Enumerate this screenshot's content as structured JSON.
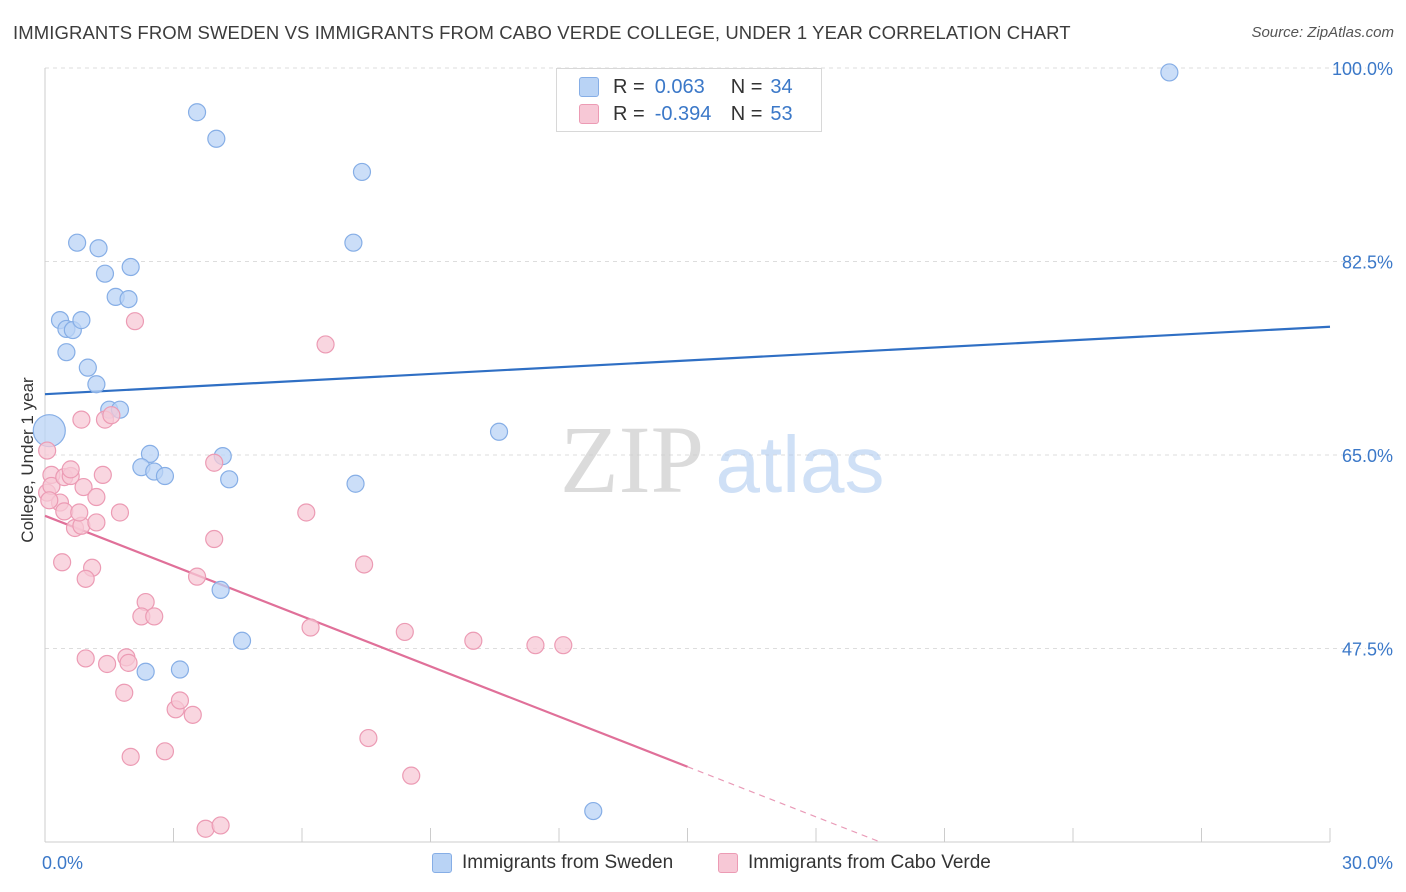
{
  "title": "IMMIGRANTS FROM SWEDEN VS IMMIGRANTS FROM CABO VERDE COLLEGE, UNDER 1 YEAR CORRELATION CHART",
  "source": "Source: ZipAtlas.com",
  "watermark": {
    "zip": "ZIP",
    "atlas": "atlas"
  },
  "legend": {
    "r_label": "R =",
    "n_label": "N =",
    "sweden": {
      "r": "0.063",
      "n": "34"
    },
    "caboverde": {
      "r": "-0.394",
      "n": "53"
    }
  },
  "colors": {
    "sweden_fill": "#b9d3f5",
    "sweden_stroke": "#86aee6",
    "sweden_line": "#2f6fc4",
    "caboverde_fill": "#f7c8d6",
    "caboverde_stroke": "#ec9bb4",
    "caboverde_line": "#e07099",
    "grid": "#dddddd",
    "axis_label": "#3b78c8"
  },
  "chart_data": {
    "type": "scatter",
    "xlabel": "",
    "ylabel": "College, Under 1 year",
    "xlim": [
      0,
      30
    ],
    "ylim": [
      30,
      100
    ],
    "x_tick_labels": [
      "0.0%",
      "30.0%"
    ],
    "y_ticks": [
      100,
      82.5,
      65,
      47.5
    ],
    "y_tick_labels": [
      "100.0%",
      "82.5%",
      "65.0%",
      "47.5%"
    ],
    "grid": true,
    "legend_position": "top-center",
    "series": [
      {
        "name": "Immigrants from Sweden",
        "trend": {
          "x": [
            0,
            30
          ],
          "y": [
            70.5,
            76.6
          ],
          "solid_until": 30
        },
        "points": [
          {
            "x": 0.1,
            "y": 67.2,
            "big": true
          },
          {
            "x": 0.35,
            "y": 77.2
          },
          {
            "x": 0.5,
            "y": 76.4
          },
          {
            "x": 0.65,
            "y": 76.3
          },
          {
            "x": 0.85,
            "y": 77.2
          },
          {
            "x": 0.5,
            "y": 74.3
          },
          {
            "x": 1.0,
            "y": 72.9
          },
          {
            "x": 1.2,
            "y": 71.4
          },
          {
            "x": 0.75,
            "y": 84.2
          },
          {
            "x": 1.25,
            "y": 83.7
          },
          {
            "x": 1.4,
            "y": 81.4
          },
          {
            "x": 1.65,
            "y": 79.3
          },
          {
            "x": 1.95,
            "y": 79.1
          },
          {
            "x": 2.0,
            "y": 82.0
          },
          {
            "x": 1.5,
            "y": 69.1
          },
          {
            "x": 1.75,
            "y": 69.1
          },
          {
            "x": 2.45,
            "y": 65.1
          },
          {
            "x": 2.25,
            "y": 63.9
          },
          {
            "x": 2.55,
            "y": 63.5
          },
          {
            "x": 2.8,
            "y": 63.1
          },
          {
            "x": 3.55,
            "y": 96.0
          },
          {
            "x": 4.0,
            "y": 93.6
          },
          {
            "x": 4.15,
            "y": 64.9
          },
          {
            "x": 4.3,
            "y": 62.8
          },
          {
            "x": 4.1,
            "y": 52.8
          },
          {
            "x": 4.6,
            "y": 48.2
          },
          {
            "x": 2.35,
            "y": 45.4
          },
          {
            "x": 3.15,
            "y": 45.6
          },
          {
            "x": 7.2,
            "y": 84.2
          },
          {
            "x": 7.4,
            "y": 90.6
          },
          {
            "x": 7.25,
            "y": 62.4
          },
          {
            "x": 10.6,
            "y": 67.1
          },
          {
            "x": 12.8,
            "y": 32.8
          },
          {
            "x": 26.25,
            "y": 99.6
          }
        ]
      },
      {
        "name": "Immigrants from Cabo Verde",
        "trend": {
          "x": [
            0,
            19.5
          ],
          "y": [
            59.5,
            30.0
          ],
          "solid_until": 15.0
        },
        "points": [
          {
            "x": 0.05,
            "y": 65.4
          },
          {
            "x": 0.05,
            "y": 61.6
          },
          {
            "x": 0.15,
            "y": 63.2
          },
          {
            "x": 0.15,
            "y": 62.2
          },
          {
            "x": 0.35,
            "y": 60.7
          },
          {
            "x": 0.45,
            "y": 59.9
          },
          {
            "x": 0.45,
            "y": 63.0
          },
          {
            "x": 0.6,
            "y": 63.1
          },
          {
            "x": 0.7,
            "y": 58.4
          },
          {
            "x": 0.85,
            "y": 58.6
          },
          {
            "x": 0.8,
            "y": 59.8
          },
          {
            "x": 0.9,
            "y": 62.1
          },
          {
            "x": 0.6,
            "y": 63.7
          },
          {
            "x": 1.2,
            "y": 61.2
          },
          {
            "x": 1.2,
            "y": 58.9
          },
          {
            "x": 1.35,
            "y": 63.2
          },
          {
            "x": 1.4,
            "y": 68.2
          },
          {
            "x": 1.55,
            "y": 68.6
          },
          {
            "x": 0.85,
            "y": 68.2
          },
          {
            "x": 1.75,
            "y": 59.8
          },
          {
            "x": 2.1,
            "y": 77.1
          },
          {
            "x": 0.4,
            "y": 55.3
          },
          {
            "x": 1.1,
            "y": 54.8
          },
          {
            "x": 0.95,
            "y": 53.8
          },
          {
            "x": 2.35,
            "y": 51.7
          },
          {
            "x": 2.25,
            "y": 50.4
          },
          {
            "x": 2.55,
            "y": 50.4
          },
          {
            "x": 0.95,
            "y": 46.6
          },
          {
            "x": 1.45,
            "y": 46.1
          },
          {
            "x": 1.9,
            "y": 46.7
          },
          {
            "x": 1.95,
            "y": 46.2
          },
          {
            "x": 1.85,
            "y": 43.5
          },
          {
            "x": 3.05,
            "y": 42.0
          },
          {
            "x": 3.15,
            "y": 42.8
          },
          {
            "x": 3.45,
            "y": 41.5
          },
          {
            "x": 2.0,
            "y": 37.7
          },
          {
            "x": 2.8,
            "y": 38.2
          },
          {
            "x": 3.75,
            "y": 31.2
          },
          {
            "x": 4.1,
            "y": 31.5
          },
          {
            "x": 3.95,
            "y": 57.4
          },
          {
            "x": 3.55,
            "y": 54.0
          },
          {
            "x": 3.95,
            "y": 64.3
          },
          {
            "x": 6.1,
            "y": 59.8
          },
          {
            "x": 6.2,
            "y": 49.4
          },
          {
            "x": 6.55,
            "y": 75.0
          },
          {
            "x": 7.45,
            "y": 55.1
          },
          {
            "x": 7.55,
            "y": 39.4
          },
          {
            "x": 8.4,
            "y": 49.0
          },
          {
            "x": 8.55,
            "y": 36.0
          },
          {
            "x": 10.0,
            "y": 48.2
          },
          {
            "x": 11.45,
            "y": 47.8
          },
          {
            "x": 12.1,
            "y": 47.8
          },
          {
            "x": 0.1,
            "y": 60.9
          }
        ]
      }
    ]
  }
}
